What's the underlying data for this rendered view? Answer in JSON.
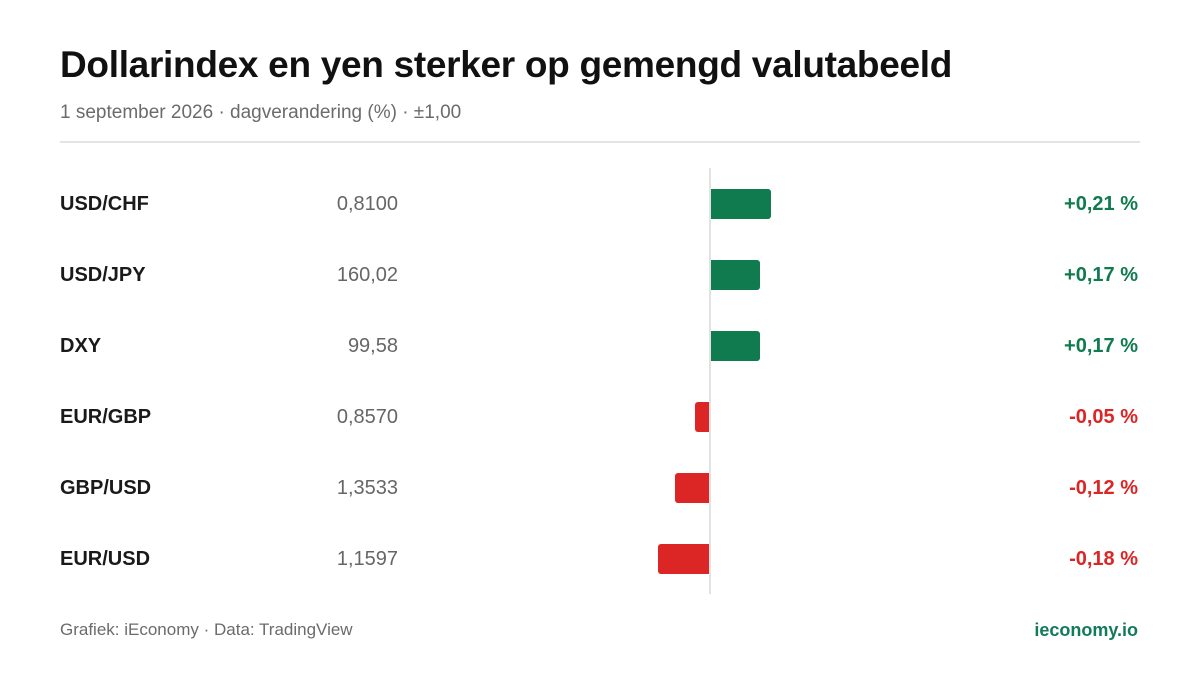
{
  "title": "Dollarindex en yen sterker op gemengd valutabeeld",
  "subtitle": "1 september 2026 · dagverandering (%) · ±1,00",
  "footer": {
    "source": "Grafiek: iEconomy · Data: TradingView",
    "brand": "ieconomy.io"
  },
  "colors": {
    "positive": "#0f7b4f",
    "negative": "#dc2626",
    "brand": "#137a5a"
  },
  "chart_data": {
    "type": "bar",
    "orientation": "horizontal",
    "categories": [
      "USD/CHF",
      "USD/JPY",
      "DXY",
      "EUR/GBP",
      "GBP/USD",
      "EUR/USD"
    ],
    "quotes": [
      "0,8100",
      "160,02",
      "99,58",
      "0,8570",
      "1,3533",
      "1,1597"
    ],
    "values": [
      0.21,
      0.17,
      0.17,
      -0.05,
      -0.12,
      -0.18
    ],
    "value_labels": [
      "+0,21 %",
      "+0,17 %",
      "+0,17 %",
      "-0,05 %",
      "-0,12 %",
      "-0,18 %"
    ],
    "xlim": [
      -1.0,
      1.0
    ],
    "grid": false
  }
}
